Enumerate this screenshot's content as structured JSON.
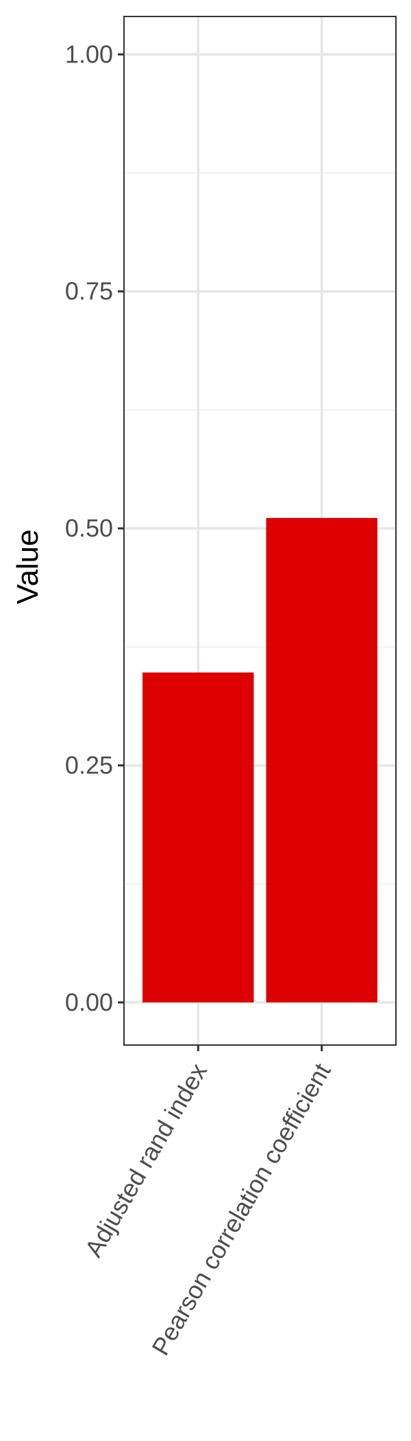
{
  "chart_data": {
    "type": "bar",
    "categories": [
      "Adjusted rand index",
      "Pearson correlation coefficient"
    ],
    "values": [
      0.348,
      0.511
    ],
    "ylabel": "Value",
    "xlabel": "",
    "ylim": [
      -0.045,
      1.04
    ],
    "yticks": [
      0.0,
      0.25,
      0.5,
      0.75,
      1.0
    ],
    "ytick_labels": [
      "0.00",
      "0.25",
      "0.50",
      "0.75",
      "1.00"
    ],
    "grid": true,
    "legend": "none",
    "bar_color": "#DC0000"
  }
}
